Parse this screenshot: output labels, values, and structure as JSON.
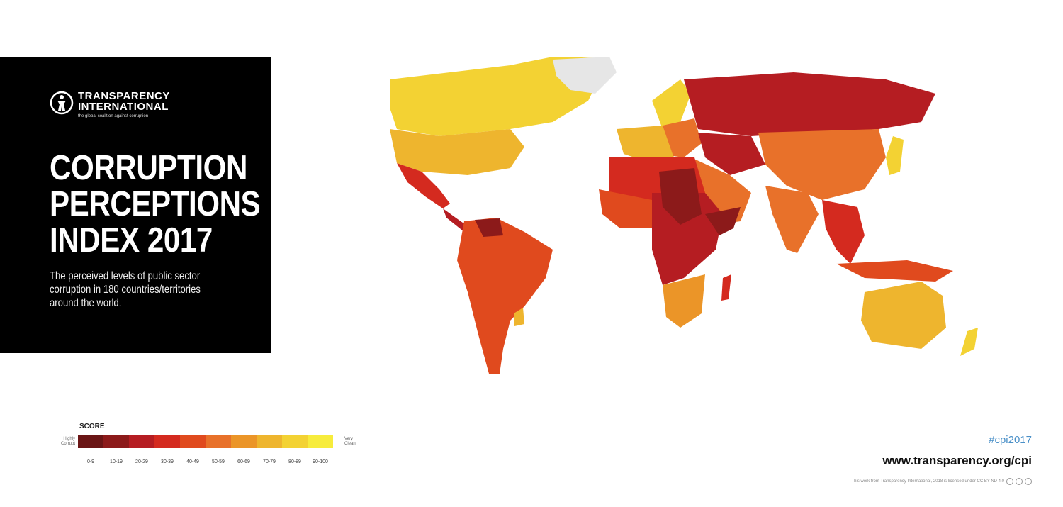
{
  "brand": {
    "name_line1": "TRANSPARENCY",
    "name_line2": "INTERNATIONAL",
    "tagline": "the global coalition against corruption"
  },
  "title": {
    "line1": "CORRUPTION",
    "line2": "PERCEPTIONS",
    "line3": "INDEX 2017"
  },
  "subtitle": {
    "line1": "The perceived levels of public sector",
    "line2": "corruption in 180 countries/territories",
    "line3": "around the world."
  },
  "legend": {
    "title": "SCORE",
    "low_label_1": "Highly",
    "low_label_2": "Corrupt",
    "high_label_1": "Very",
    "high_label_2": "Clean",
    "bins": [
      {
        "label": "0-9",
        "color": "#6a1515"
      },
      {
        "label": "10-19",
        "color": "#8c1a1a"
      },
      {
        "label": "20-29",
        "color": "#b51d22"
      },
      {
        "label": "30-39",
        "color": "#d42a1f"
      },
      {
        "label": "40-49",
        "color": "#e04a1e"
      },
      {
        "label": "50-59",
        "color": "#e8712a"
      },
      {
        "label": "60-69",
        "color": "#eb9528"
      },
      {
        "label": "70-79",
        "color": "#eeb52e"
      },
      {
        "label": "80-89",
        "color": "#f3d233"
      },
      {
        "label": "90-100",
        "color": "#f7ec3c"
      }
    ]
  },
  "footer": {
    "hashtag": "#cpi2017",
    "url": "www.transparency.org/cpi",
    "license": "This work from Transparency International, 2018 is licensed under CC BY-ND 4.0"
  },
  "map": {
    "no_data_color": "#e6e6e6"
  }
}
